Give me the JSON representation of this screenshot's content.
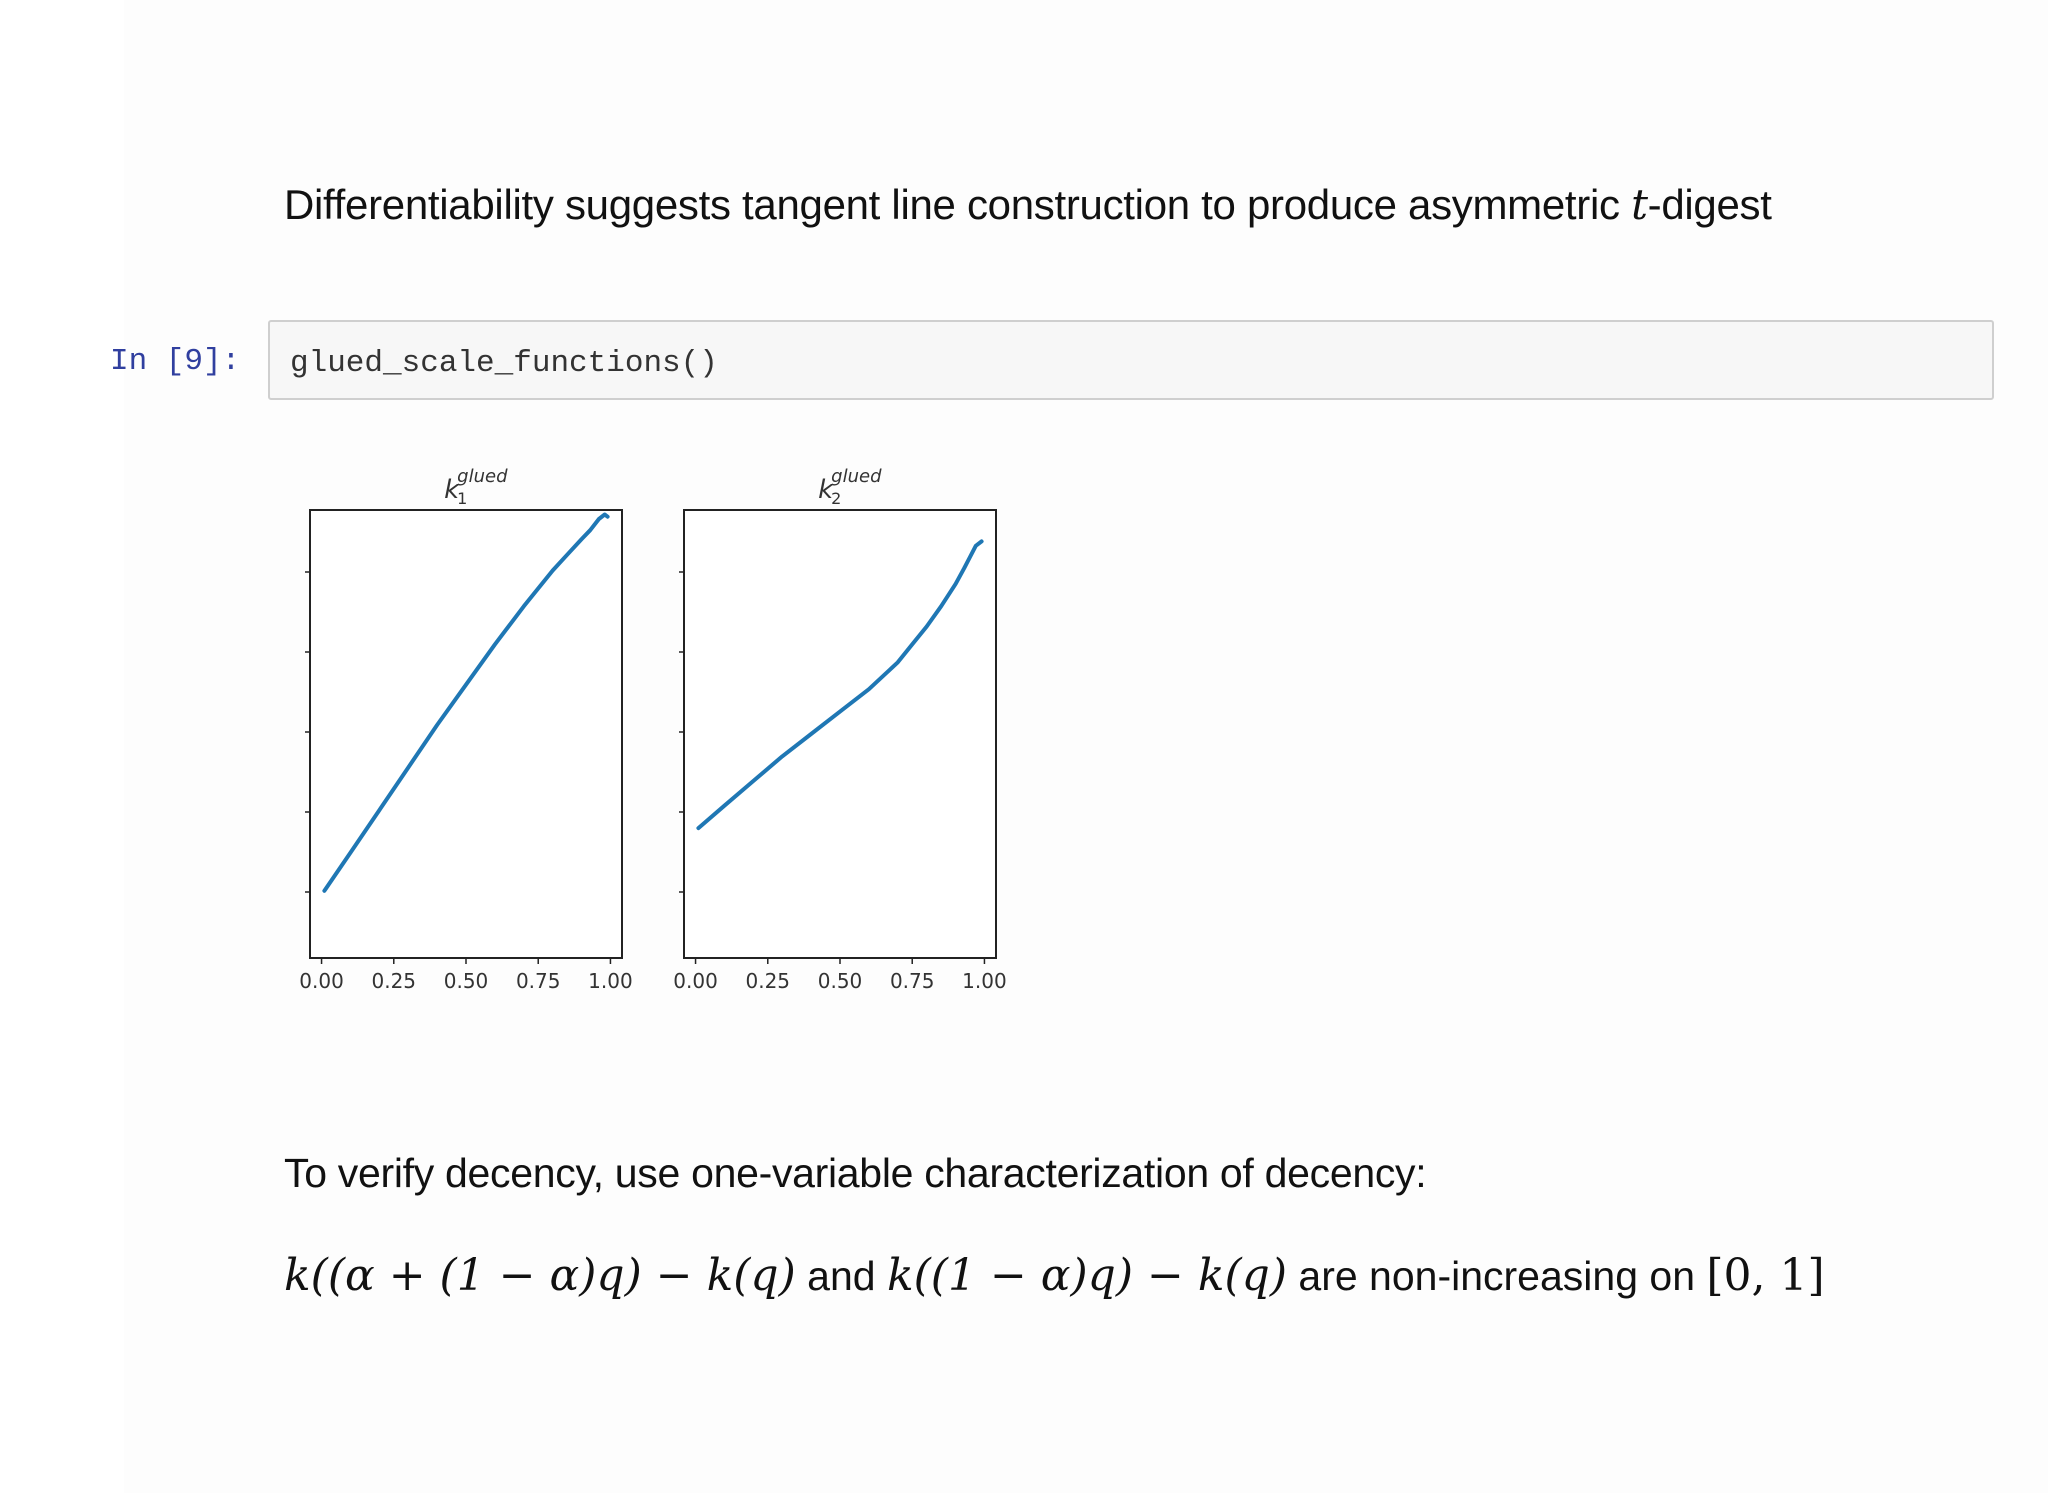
{
  "heading": {
    "prefix": "Differentiability suggests tangent line construction to produce asymmetric ",
    "var": "t",
    "suffix": "-digest"
  },
  "code_cell": {
    "prompt": "In [9]:",
    "code": "glued_scale_functions()"
  },
  "output_text": "To verify decency, use one-variable characterization of decency:",
  "math_statement": {
    "expr1": "k((α + (1 − α)q) − k(q)",
    "and": " and ",
    "expr2": "k((1 − α)q) − k(q)",
    "middle": " are non-increasing on ",
    "interval": "[0, 1]"
  },
  "chart_data": [
    {
      "type": "line",
      "title": "k_1^glued",
      "title_base": "k",
      "title_sub": "1",
      "title_sup": "glued",
      "x_tick_labels": [
        "0.00",
        "0.25",
        "0.50",
        "0.75",
        "1.00"
      ],
      "xlim": [
        -0.04,
        1.04
      ],
      "y_tick_labels": [],
      "ylim": [
        0,
        1
      ],
      "series": [
        {
          "color": "#1f77b4",
          "x": [
            0.01,
            0.1,
            0.2,
            0.3,
            0.4,
            0.5,
            0.6,
            0.7,
            0.8,
            0.85,
            0.9,
            0.93,
            0.96,
            0.98,
            0.99
          ],
          "y": [
            0.15,
            0.235,
            0.33,
            0.425,
            0.52,
            0.61,
            0.7,
            0.785,
            0.865,
            0.9,
            0.935,
            0.955,
            0.98,
            0.99,
            0.985
          ]
        }
      ]
    },
    {
      "type": "line",
      "title": "k_2^glued",
      "title_base": "k",
      "title_sub": "2",
      "title_sup": "glued",
      "x_tick_labels": [
        "0.00",
        "0.25",
        "0.50",
        "0.75",
        "1.00"
      ],
      "xlim": [
        -0.04,
        1.04
      ],
      "y_tick_labels": [],
      "ylim": [
        0,
        1
      ],
      "series": [
        {
          "color": "#1f77b4",
          "x": [
            0.01,
            0.1,
            0.2,
            0.3,
            0.4,
            0.5,
            0.6,
            0.7,
            0.75,
            0.8,
            0.85,
            0.9,
            0.93,
            0.95,
            0.97,
            0.99
          ],
          "y": [
            0.29,
            0.34,
            0.395,
            0.45,
            0.5,
            0.55,
            0.6,
            0.66,
            0.7,
            0.74,
            0.785,
            0.835,
            0.87,
            0.895,
            0.92,
            0.93
          ]
        }
      ]
    }
  ]
}
